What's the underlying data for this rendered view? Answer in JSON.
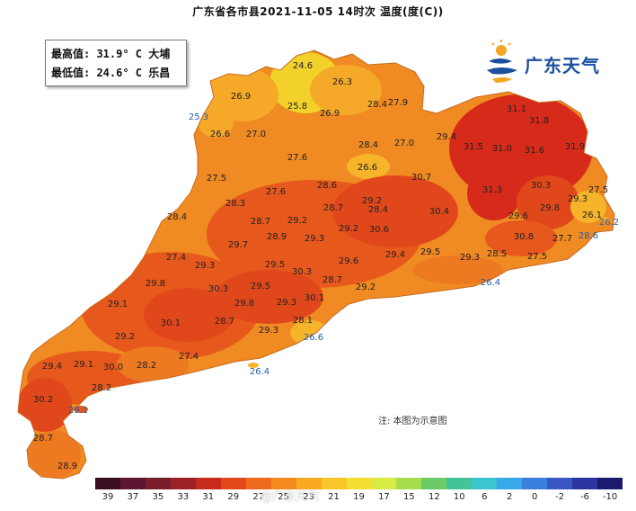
{
  "title": "广东省各市县2021-11-05 14时次 温度(度(C))",
  "extremes": {
    "max_line": "最高值: 31.9° C 大埔",
    "min_line": "最低值: 24.6° C 乐昌"
  },
  "logo": {
    "text": "广东天气",
    "icon": "sun-wave-logo-icon",
    "colors": [
      "#f5a623",
      "#1b4fa0"
    ]
  },
  "note": "注: 本图为示意图",
  "watermark": "@广东天气",
  "legend": {
    "labels": [
      "39",
      "37",
      "35",
      "33",
      "31",
      "29",
      "27",
      "25",
      "23",
      "21",
      "19",
      "17",
      "15",
      "12",
      "10",
      "6",
      "2",
      "0",
      "-2",
      "-6",
      "-10"
    ],
    "colors": [
      "#3a0f22",
      "#5c1631",
      "#7a1c2a",
      "#9c2128",
      "#c72a1c",
      "#e2481a",
      "#ef6a1c",
      "#f58a1f",
      "#f8a823",
      "#f9c629",
      "#f4de33",
      "#d9ea44",
      "#a8dc4f",
      "#6bcb66",
      "#44c39a",
      "#3cc4cf",
      "#38a8e8",
      "#3a7fdc",
      "#3856c4",
      "#2c34a0",
      "#1c1a6e"
    ]
  },
  "map_values": [
    {
      "v": "24.6",
      "c": "#f2d22a"
    },
    {
      "v": "26.3",
      "c": "#f6a928"
    },
    {
      "v": "27.9",
      "c": "#f08a22"
    },
    {
      "v": "26.9",
      "c": "#f6a928"
    },
    {
      "v": "25.8",
      "c": "#f2d22a"
    },
    {
      "v": "26.9",
      "c": "#f6a928"
    },
    {
      "v": "28.4",
      "c": "#ed7a20"
    },
    {
      "v": "25.3",
      "c": "#f2d22a",
      "blue": true
    },
    {
      "v": "26.6",
      "c": "#f6a928"
    },
    {
      "v": "27.0",
      "c": "#f08a22"
    },
    {
      "v": "28.4",
      "c": "#ed7a20"
    },
    {
      "v": "27.0",
      "c": "#f08a22"
    },
    {
      "v": "29.4",
      "c": "#e6581c"
    },
    {
      "v": "31.1",
      "c": "#d62a1a"
    },
    {
      "v": "31.8",
      "c": "#d62a1a"
    },
    {
      "v": "27.6",
      "c": "#f08a22"
    },
    {
      "v": "26.6",
      "c": "#f6b42a"
    },
    {
      "v": "31.5",
      "c": "#d62a1a"
    },
    {
      "v": "31.0",
      "c": "#d62a1a"
    },
    {
      "v": "31.6",
      "c": "#d62a1a"
    },
    {
      "v": "31.9",
      "c": "#d62a1a"
    },
    {
      "v": "27.5",
      "c": "#f08a22"
    },
    {
      "v": "28.6",
      "c": "#ed7a20"
    },
    {
      "v": "30.7",
      "c": "#e0481b"
    },
    {
      "v": "31.3",
      "c": "#d62a1a"
    },
    {
      "v": "30.3",
      "c": "#e0481b"
    },
    {
      "v": "27.5",
      "c": "#f08a22"
    },
    {
      "v": "28.3",
      "c": "#ed7a20"
    },
    {
      "v": "27.6",
      "c": "#f08a22"
    },
    {
      "v": "29.2",
      "c": "#e6581c"
    },
    {
      "v": "30.4",
      "c": "#e0481b"
    },
    {
      "v": "29.3",
      "c": "#e6581c"
    },
    {
      "v": "28.4",
      "c": "#ed7a20"
    },
    {
      "v": "28.7",
      "c": "#ed7a20"
    },
    {
      "v": "29.2",
      "c": "#e6581c"
    },
    {
      "v": "28.4",
      "c": "#ed7a20"
    },
    {
      "v": "29.6",
      "c": "#e6581c"
    },
    {
      "v": "29.8",
      "c": "#e6581c"
    },
    {
      "v": "26.1",
      "c": "#f6b42a"
    },
    {
      "v": "26.2",
      "c": "#f6b42a",
      "blue": true
    },
    {
      "v": "28.7",
      "c": "#ed7a20"
    },
    {
      "v": "28.9",
      "c": "#ed7a20"
    },
    {
      "v": "29.3",
      "c": "#e6581c"
    },
    {
      "v": "29.2",
      "c": "#e6581c"
    },
    {
      "v": "30.6",
      "c": "#e0481b"
    },
    {
      "v": "30.8",
      "c": "#e0481b"
    },
    {
      "v": "27.7",
      "c": "#f08a22"
    },
    {
      "v": "28.6",
      "c": "#ed7a20",
      "blue": true
    },
    {
      "v": "29.7",
      "c": "#e6581c"
    },
    {
      "v": "27.4",
      "c": "#f08a22"
    },
    {
      "v": "29.5",
      "c": "#e6581c"
    },
    {
      "v": "29.6",
      "c": "#e6581c"
    },
    {
      "v": "29.4",
      "c": "#e6581c"
    },
    {
      "v": "29.5",
      "c": "#e6581c"
    },
    {
      "v": "29.3",
      "c": "#e6581c"
    },
    {
      "v": "28.5",
      "c": "#ed7a20"
    },
    {
      "v": "27.5",
      "c": "#f08a22"
    },
    {
      "v": "29.3",
      "c": "#e6581c"
    },
    {
      "v": "30.3",
      "c": "#e0481b"
    },
    {
      "v": "28.7",
      "c": "#ed7a20"
    },
    {
      "v": "26.4",
      "c": "#f6b42a",
      "blue": true
    },
    {
      "v": "29.8",
      "c": "#e6581c"
    },
    {
      "v": "30.3",
      "c": "#e0481b"
    },
    {
      "v": "29.5",
      "c": "#e6581c"
    },
    {
      "v": "30.1",
      "c": "#e0481b"
    },
    {
      "v": "29.2",
      "c": "#e6581c"
    },
    {
      "v": "29.1",
      "c": "#e6581c"
    },
    {
      "v": "29.8",
      "c": "#e6581c"
    },
    {
      "v": "29.3",
      "c": "#e6581c"
    },
    {
      "v": "28.1",
      "c": "#ed7a20"
    },
    {
      "v": "30.1",
      "c": "#e0481b"
    },
    {
      "v": "28.7",
      "c": "#ed7a20"
    },
    {
      "v": "26.6",
      "c": "#f6b42a",
      "blue": true
    },
    {
      "v": "29.2",
      "c": "#e6581c"
    },
    {
      "v": "29.3",
      "c": "#e6581c"
    },
    {
      "v": "27.4",
      "c": "#f08a22"
    },
    {
      "v": "29.4",
      "c": "#e6581c"
    },
    {
      "v": "29.1",
      "c": "#e6581c"
    },
    {
      "v": "30.0",
      "c": "#e0481b"
    },
    {
      "v": "28.2",
      "c": "#ed7a20"
    },
    {
      "v": "26.4",
      "c": "#f6b42a",
      "blue": true
    },
    {
      "v": "28.2",
      "c": "#ed7a20"
    },
    {
      "v": "30.2",
      "c": "#e0481b"
    },
    {
      "v": "29.1",
      "c": "#e6581c",
      "blue": true
    },
    {
      "v": "28.7",
      "c": "#ed7a20"
    },
    {
      "v": "28.9",
      "c": "#ed7a20"
    }
  ]
}
